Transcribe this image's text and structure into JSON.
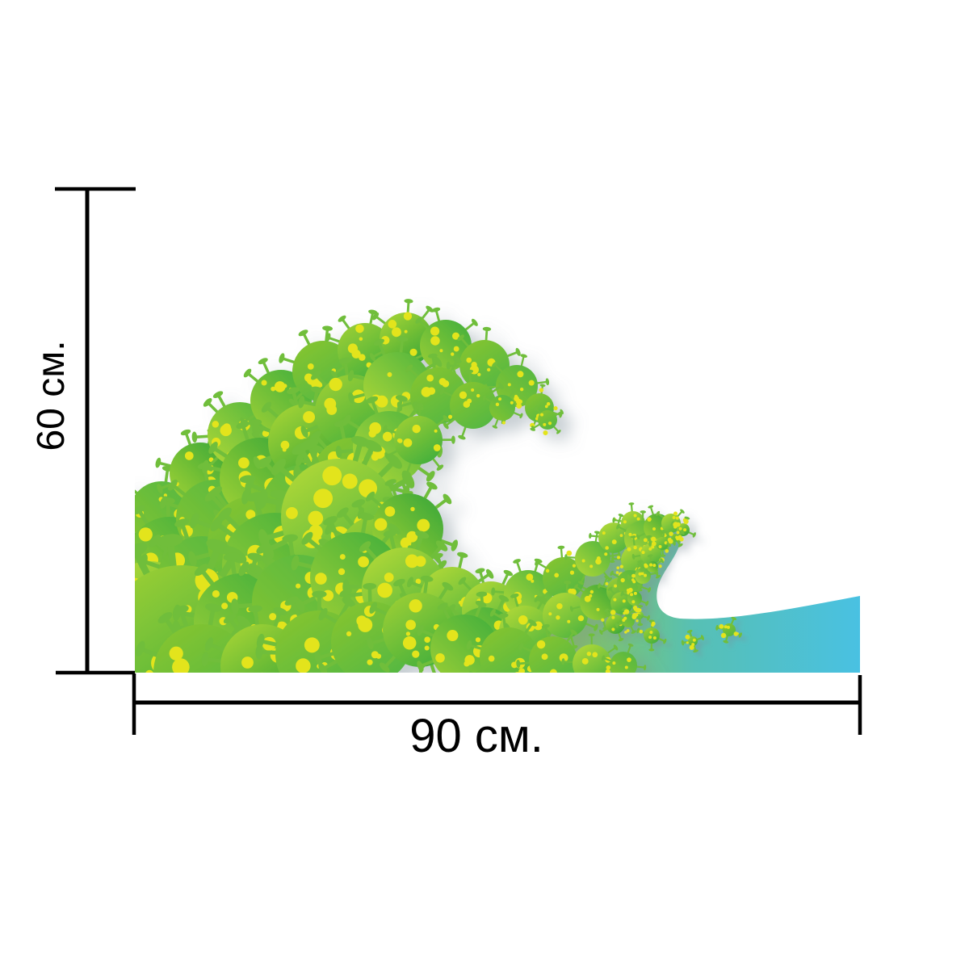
{
  "figure": {
    "height_label": "60 см.",
    "width_label": "90 см."
  },
  "artwork": {
    "subject": "wave made of green virus particles",
    "colors": {
      "background": "#ffffff",
      "dimension_line": "#000000",
      "label_text": "#000000",
      "dot_yellow": "#e3e41f",
      "spike_green": "#6fbe3a",
      "water_green": "#8cc84e",
      "water_teal": "#57c0b4",
      "water_blue": "#49c1e2",
      "shadow": "#7d8d99"
    },
    "ball_gradients": [
      [
        "#b2d937",
        "#4eb43e"
      ],
      [
        "#9ccf35",
        "#3fae3c"
      ],
      [
        "#86c52f",
        "#52b744"
      ],
      [
        "#a5d434",
        "#35a538"
      ]
    ]
  }
}
